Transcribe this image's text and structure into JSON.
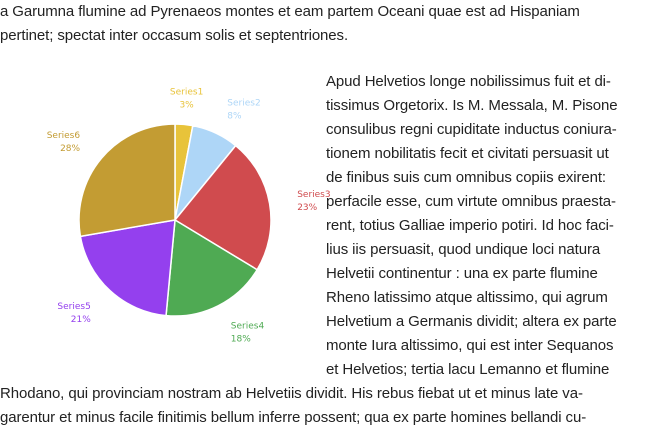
{
  "document": {
    "top_lines": [
      "a Garumna flumine ad Pyrenaeos montes et eam partem Oceani quae est ad Hispaniam",
      "pertinet; spectat inter occasum solis et septentriones."
    ],
    "side_lines": [
      "Apud Helvetios longe nobilissimus fuit et di-",
      "tissimus Orgetorix. Is M. Messala, M. Pisone",
      "consulibus regni cupiditate inductus coniura-",
      "tionem nobilitatis fecit et civitati persuasit ut",
      "de finibus suis cum omnibus copiis exirent:",
      "perfacile esse, cum virtute omnibus praesta-",
      "rent, totius Galliae imperio potiri. Id hoc faci-",
      "lius iis persuasit, quod undique loci natura",
      "Helvetii continentur : una ex parte flumine",
      "Rheno latissimo atque altissimo, qui agrum",
      "Helvetium a Germanis dividit; altera ex parte",
      "monte Iura altissimo, qui est inter Sequanos",
      "et Helvetios; tertia lacu Lemanno et flumine"
    ],
    "bottom_lines": [
      "Rhodano, qui provinciam nostram ab Helvetiis dividit. His rebus fiebat ut et minus late va-",
      "garentur et minus facile finitimis bellum inferre possent; qua ex parte homines bellandi cu-"
    ]
  },
  "chart_data": {
    "type": "pie",
    "title": "",
    "start_angle_deg": 0,
    "direction": "clockwise",
    "slices": [
      {
        "name": "Series1",
        "value": 3,
        "label": "3%",
        "color": "#e8c33a"
      },
      {
        "name": "Series2",
        "value": 8,
        "label": "8%",
        "color": "#aed6f7"
      },
      {
        "name": "Series3",
        "value": 23,
        "label": "23%",
        "color": "#d04b4e"
      },
      {
        "name": "Series4",
        "value": 18,
        "label": "18%",
        "color": "#4faa53"
      },
      {
        "name": "Series5",
        "value": 21,
        "label": "21%",
        "color": "#9440ee"
      },
      {
        "name": "Series6",
        "value": 28,
        "label": "28%",
        "color": "#c39c33"
      }
    ],
    "legend": "none",
    "labels": "outside"
  }
}
